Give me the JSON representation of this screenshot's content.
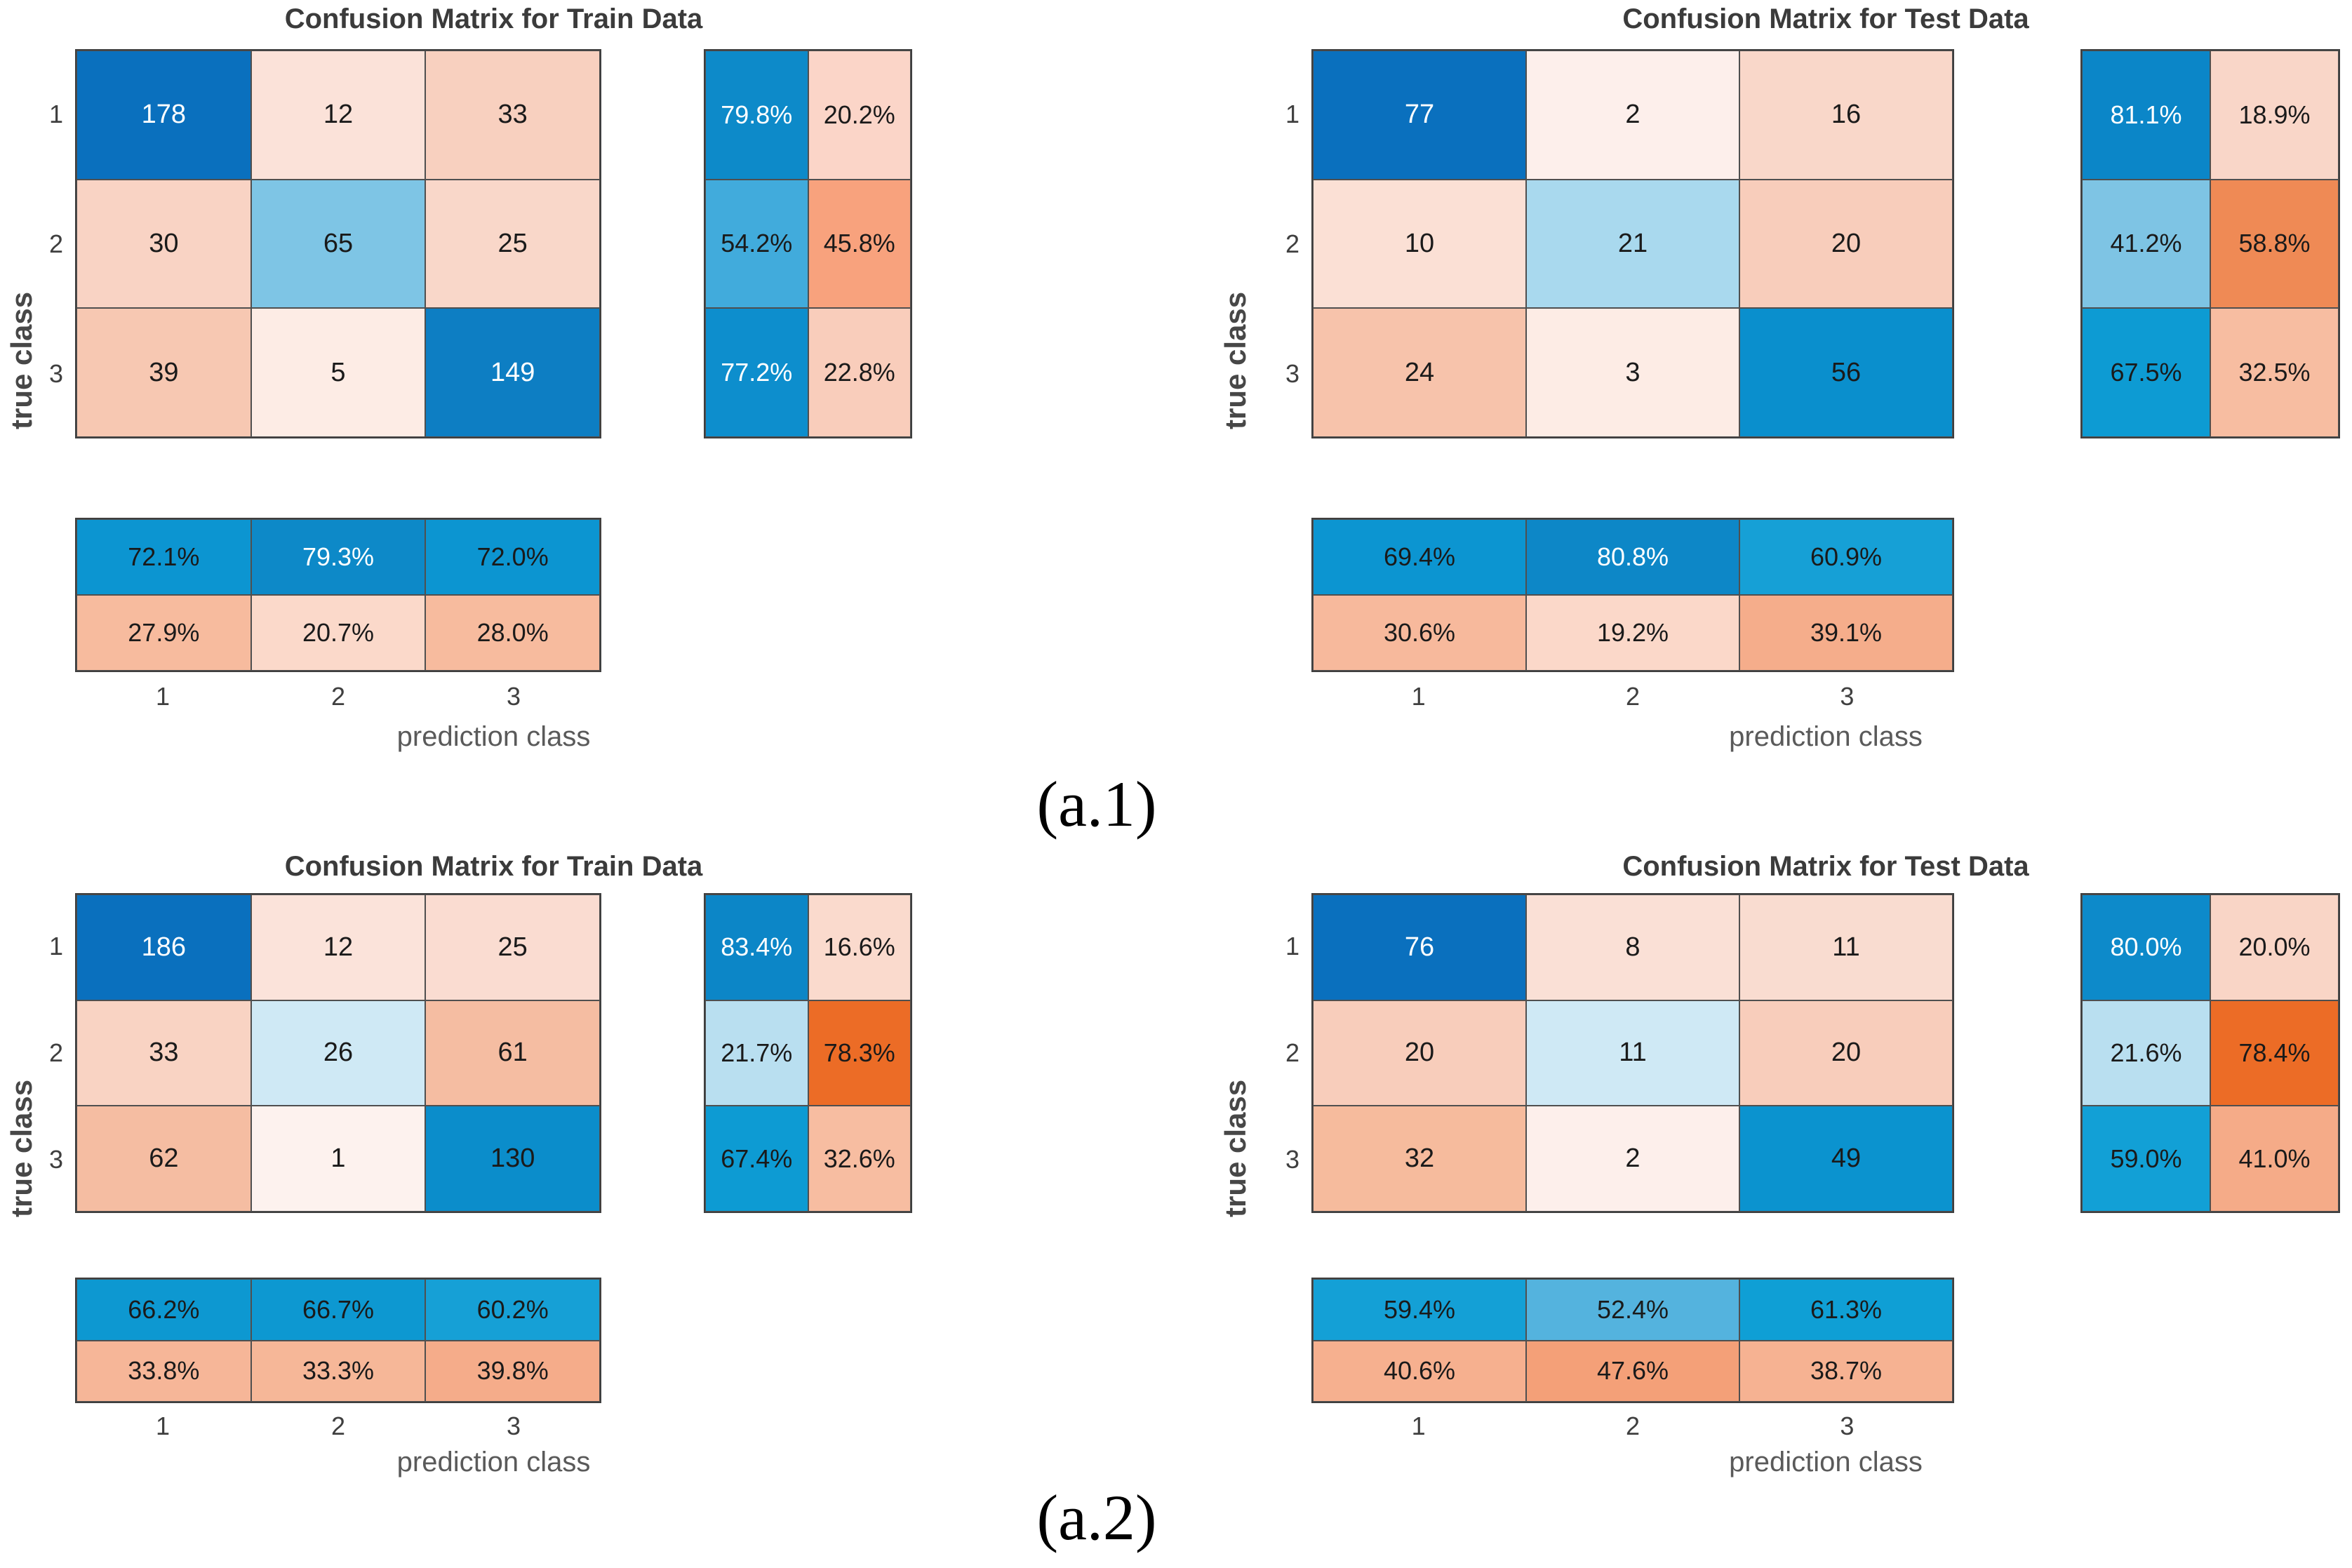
{
  "captions": {
    "a1": "(a.1)",
    "a2": "(a.2)"
  },
  "chart_data": [
    {
      "type": "heatmap",
      "title": "Confusion Matrix for Train Data",
      "xlabel": "prediction class",
      "ylabel": "true class",
      "classes": [
        "1",
        "2",
        "3"
      ],
      "matrix": [
        [
          178,
          12,
          33
        ],
        [
          30,
          65,
          25
        ],
        [
          39,
          5,
          149
        ]
      ],
      "row_summary_percent": [
        [
          "79.8%",
          "20.2%"
        ],
        [
          "54.2%",
          "45.8%"
        ],
        [
          "77.2%",
          "22.8%"
        ]
      ],
      "col_summary_percent": [
        [
          "72.1%",
          "79.3%",
          "72.0%"
        ],
        [
          "27.9%",
          "20.7%",
          "28.0%"
        ]
      ],
      "colors": {
        "matrix_bg": [
          [
            "#0a70be",
            "#fbe2d9",
            "#f8d0bf"
          ],
          [
            "#f9d3c4",
            "#7ec5e5",
            "#f9d7c9"
          ],
          [
            "#f7c8b2",
            "#fdece5",
            "#0d7ec3"
          ]
        ],
        "matrix_fg": [
          [
            "#ffffff",
            "#1a1a1a",
            "#1a1a1a"
          ],
          [
            "#1a1a1a",
            "#1a1a1a",
            "#1a1a1a"
          ],
          [
            "#1a1a1a",
            "#1a1a1a",
            "#ffffff"
          ]
        ],
        "row_bg": [
          [
            "#0d8ac9",
            "#fbd5c8"
          ],
          [
            "#41abdc",
            "#f8a27d"
          ],
          [
            "#0d8ecd",
            "#f9cdbb"
          ]
        ],
        "row_fg": [
          [
            "#ffffff",
            "#1a1a1a"
          ],
          [
            "#1a1a1a",
            "#1a1a1a"
          ],
          [
            "#ffffff",
            "#1a1a1a"
          ]
        ],
        "col_bg": [
          [
            "#0c95d1",
            "#0d89c8",
            "#0c95d1"
          ],
          [
            "#f7bb9e",
            "#fbd9ca",
            "#f7bb9e"
          ]
        ],
        "col_fg": [
          [
            "#1a1a1a",
            "#ffffff",
            "#1a1a1a"
          ],
          [
            "#1a1a1a",
            "#1a1a1a",
            "#1a1a1a"
          ]
        ]
      }
    },
    {
      "type": "heatmap",
      "title": "Confusion Matrix for Test Data",
      "xlabel": "prediction class",
      "ylabel": "true class",
      "classes": [
        "1",
        "2",
        "3"
      ],
      "matrix": [
        [
          77,
          2,
          16
        ],
        [
          10,
          21,
          20
        ],
        [
          24,
          3,
          56
        ]
      ],
      "row_summary_percent": [
        [
          "81.1%",
          "18.9%"
        ],
        [
          "41.2%",
          "58.8%"
        ],
        [
          "67.5%",
          "32.5%"
        ]
      ],
      "col_summary_percent": [
        [
          "69.4%",
          "80.8%",
          "60.9%"
        ],
        [
          "30.6%",
          "19.2%",
          "39.1%"
        ]
      ],
      "colors": {
        "matrix_bg": [
          [
            "#0a70be",
            "#fdefeb",
            "#f9d7c9"
          ],
          [
            "#fbe0d5",
            "#a9d9ee",
            "#f8cdbb"
          ],
          [
            "#f7c3ab",
            "#fdece5",
            "#0a8fcd"
          ]
        ],
        "matrix_fg": [
          [
            "#ffffff",
            "#1a1a1a",
            "#1a1a1a"
          ],
          [
            "#1a1a1a",
            "#1a1a1a",
            "#1a1a1a"
          ],
          [
            "#1a1a1a",
            "#1a1a1a",
            "#1a1a1a"
          ]
        ],
        "row_bg": [
          [
            "#0b86c8",
            "#f9d6c8"
          ],
          [
            "#7ec4e4",
            "#ef8a55"
          ],
          [
            "#0d9bd3",
            "#f7bda1"
          ]
        ],
        "row_fg": [
          [
            "#ffffff",
            "#1a1a1a"
          ],
          [
            "#1a1a1a",
            "#1a1a1a"
          ],
          [
            "#1a1a1a",
            "#1a1a1a"
          ]
        ],
        "col_bg": [
          [
            "#0c95d1",
            "#0d87c7",
            "#16a0d6"
          ],
          [
            "#f7b99c",
            "#fbd8c9",
            "#f5ad8b"
          ]
        ],
        "col_fg": [
          [
            "#1a1a1a",
            "#ffffff",
            "#1a1a1a"
          ],
          [
            "#1a1a1a",
            "#1a1a1a",
            "#1a1a1a"
          ]
        ]
      }
    },
    {
      "type": "heatmap",
      "title": "Confusion Matrix for Train Data",
      "xlabel": "prediction class",
      "ylabel": "true class",
      "classes": [
        "1",
        "2",
        "3"
      ],
      "matrix": [
        [
          186,
          12,
          25
        ],
        [
          33,
          26,
          61
        ],
        [
          62,
          1,
          130
        ]
      ],
      "row_summary_percent": [
        [
          "83.4%",
          "16.6%"
        ],
        [
          "21.7%",
          "78.3%"
        ],
        [
          "67.4%",
          "32.6%"
        ]
      ],
      "col_summary_percent": [
        [
          "66.2%",
          "66.7%",
          "60.2%"
        ],
        [
          "33.8%",
          "33.3%",
          "39.8%"
        ]
      ],
      "colors": {
        "matrix_bg": [
          [
            "#0a70be",
            "#fbe3da",
            "#fadcd1"
          ],
          [
            "#f9d3c3",
            "#cfe9f5",
            "#f5bda2"
          ],
          [
            "#f5bda2",
            "#fdf2ee",
            "#0b8dcb"
          ]
        ],
        "matrix_fg": [
          [
            "#ffffff",
            "#1a1a1a",
            "#1a1a1a"
          ],
          [
            "#1a1a1a",
            "#1a1a1a",
            "#1a1a1a"
          ],
          [
            "#1a1a1a",
            "#1a1a1a",
            "#1a1a1a"
          ]
        ],
        "row_bg": [
          [
            "#0c86c7",
            "#fadacd"
          ],
          [
            "#b9dff0",
            "#ec6c26"
          ],
          [
            "#0d9bd3",
            "#f7bda1"
          ]
        ],
        "row_fg": [
          [
            "#ffffff",
            "#1a1a1a"
          ],
          [
            "#1a1a1a",
            "#1a1a1a"
          ],
          [
            "#1a1a1a",
            "#1a1a1a"
          ]
        ],
        "col_bg": [
          [
            "#0d98d1",
            "#0d98d1",
            "#16a0d6"
          ],
          [
            "#f6b698",
            "#f6b798",
            "#f5ac8a"
          ]
        ],
        "col_fg": [
          [
            "#1a1a1a",
            "#1a1a1a",
            "#1a1a1a"
          ],
          [
            "#1a1a1a",
            "#1a1a1a",
            "#1a1a1a"
          ]
        ]
      }
    },
    {
      "type": "heatmap",
      "title": "Confusion Matrix for Test Data",
      "xlabel": "prediction class",
      "ylabel": "true class",
      "classes": [
        "1",
        "2",
        "3"
      ],
      "matrix": [
        [
          76,
          8,
          11
        ],
        [
          20,
          11,
          20
        ],
        [
          32,
          2,
          49
        ]
      ],
      "row_summary_percent": [
        [
          "80.0%",
          "20.0%"
        ],
        [
          "21.6%",
          "78.4%"
        ],
        [
          "59.0%",
          "41.0%"
        ]
      ],
      "col_summary_percent": [
        [
          "59.4%",
          "52.4%",
          "61.3%"
        ],
        [
          "40.6%",
          "47.6%",
          "38.7%"
        ]
      ],
      "colors": {
        "matrix_bg": [
          [
            "#0a70be",
            "#fae0d6",
            "#f9dcd0"
          ],
          [
            "#f8cdbb",
            "#cfe9f5",
            "#f8cdbb"
          ],
          [
            "#f6bb9d",
            "#fdefeb",
            "#0b93cf"
          ]
        ],
        "matrix_fg": [
          [
            "#ffffff",
            "#1a1a1a",
            "#1a1a1a"
          ],
          [
            "#1a1a1a",
            "#1a1a1a",
            "#1a1a1a"
          ],
          [
            "#1a1a1a",
            "#1a1a1a",
            "#1a1a1a"
          ]
        ],
        "row_bg": [
          [
            "#0d8aca",
            "#f9d5c6"
          ],
          [
            "#b9dff0",
            "#ec6c26"
          ],
          [
            "#12a0d6",
            "#f5ab88"
          ]
        ],
        "row_fg": [
          [
            "#ffffff",
            "#1a1a1a"
          ],
          [
            "#1a1a1a",
            "#1a1a1a"
          ],
          [
            "#1a1a1a",
            "#1a1a1a"
          ]
        ],
        "col_bg": [
          [
            "#14a0d6",
            "#54b3de",
            "#0f9fd5"
          ],
          [
            "#f6b08f",
            "#f4a078",
            "#f6b292"
          ]
        ],
        "col_fg": [
          [
            "#1a1a1a",
            "#1a1a1a",
            "#1a1a1a"
          ],
          [
            "#1a1a1a",
            "#1a1a1a",
            "#1a1a1a"
          ]
        ]
      }
    }
  ]
}
